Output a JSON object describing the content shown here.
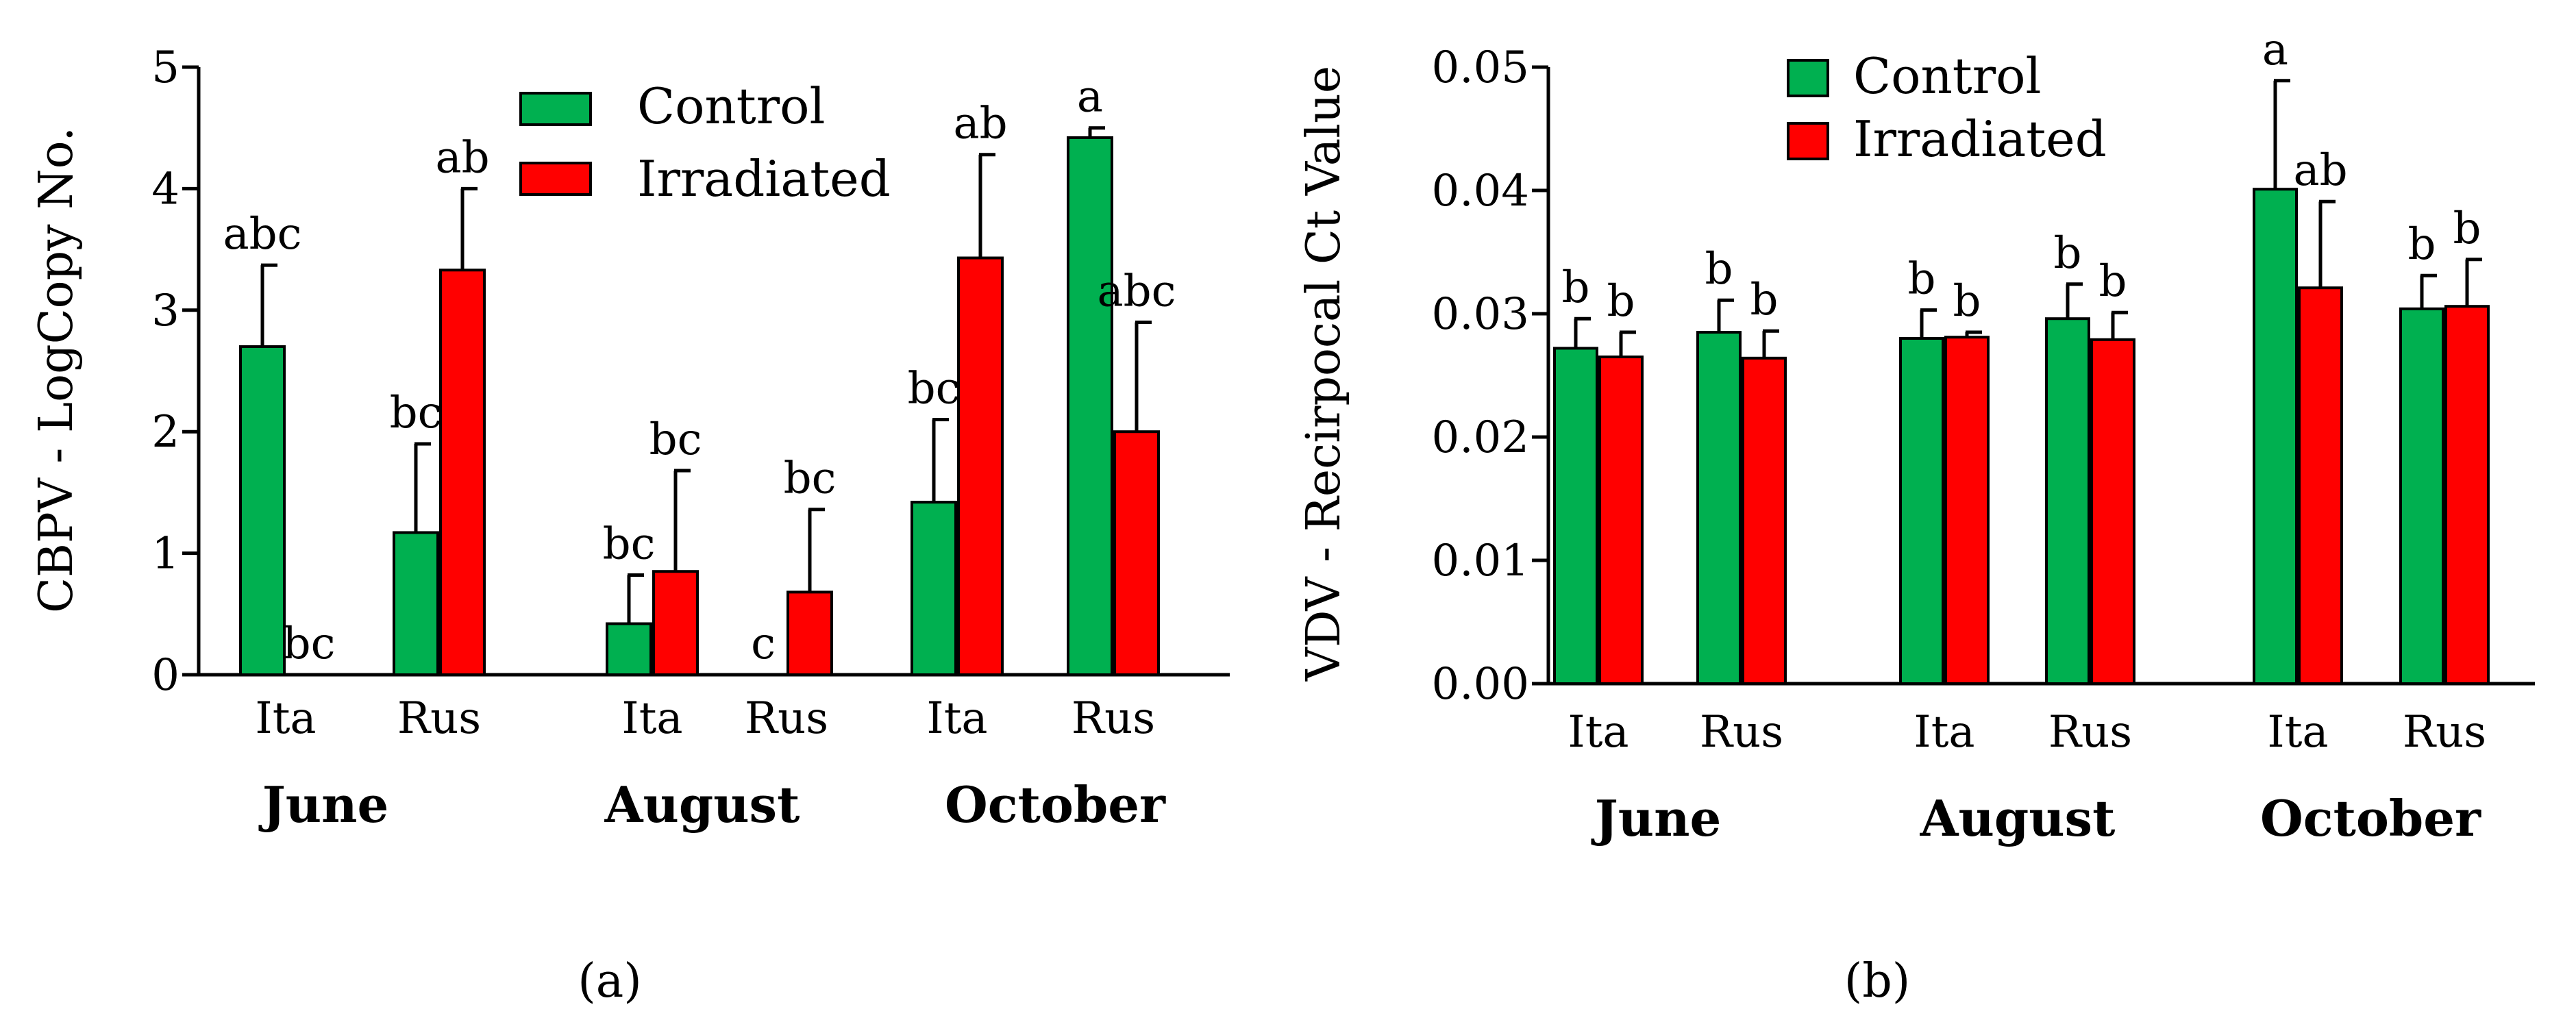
{
  "chart_data": [
    {
      "type": "bar",
      "panel_label": "(a)",
      "ylabel": "CBPV - LogCopy No.",
      "ylim": [
        0,
        5
      ],
      "yticks": [
        0,
        1,
        2,
        3,
        4,
        5
      ],
      "ytick_labels": [
        "0",
        "1",
        "2",
        "3",
        "4",
        "5"
      ],
      "months": [
        "June",
        "August",
        "October"
      ],
      "varieties": [
        "Ita",
        "Rus"
      ],
      "legend": {
        "position": "top-center",
        "entries": [
          "Control",
          "Irradiated"
        ]
      },
      "colors": {
        "Control": "#00b050",
        "Irradiated": "#ff0000"
      },
      "series": [
        {
          "name": "Control",
          "values": [
            2.7,
            1.17,
            0.42,
            0.0,
            1.42,
            4.42
          ],
          "errors": [
            0.67,
            0.73,
            0.4,
            0.0,
            0.68,
            0.08
          ],
          "letters": [
            "abc",
            "bc",
            "bc",
            "c",
            "bc",
            "a"
          ]
        },
        {
          "name": "Irradiated",
          "values": [
            0.0,
            3.33,
            0.85,
            0.68,
            3.43,
            2.0
          ],
          "errors": [
            0.0,
            0.67,
            0.83,
            0.68,
            0.85,
            0.9
          ],
          "letters": [
            "bc",
            "ab",
            "bc",
            "bc",
            "ab",
            "abc"
          ]
        }
      ]
    },
    {
      "type": "bar",
      "panel_label": "(b)",
      "ylabel": "VDV - Recirpocal Ct Value",
      "ylim": [
        0,
        0.05
      ],
      "yticks": [
        0,
        0.01,
        0.02,
        0.03,
        0.04,
        0.05
      ],
      "ytick_labels": [
        "0.00",
        "0.01",
        "0.02",
        "0.03",
        "0.04",
        "0.05"
      ],
      "months": [
        "June",
        "August",
        "October"
      ],
      "varieties": [
        "Ita",
        "Rus"
      ],
      "legend": {
        "position": "top-left",
        "entries": [
          "Control",
          "Irradiated"
        ]
      },
      "colors": {
        "Control": "#00b050",
        "Irradiated": "#ff0000"
      },
      "series": [
        {
          "name": "Control",
          "values": [
            0.0272,
            0.0285,
            0.028,
            0.0296,
            0.0401,
            0.0304
          ],
          "errors": [
            0.0024,
            0.0026,
            0.0023,
            0.0028,
            0.0088,
            0.0027
          ],
          "letters": [
            "b",
            "b",
            "b",
            "b",
            "a",
            "b"
          ]
        },
        {
          "name": "Irradiated",
          "values": [
            0.0265,
            0.0264,
            0.0281,
            0.0279,
            0.0321,
            0.0306
          ],
          "errors": [
            0.002,
            0.0022,
            0.0004,
            0.0022,
            0.007,
            0.0038
          ],
          "letters": [
            "b",
            "b",
            "b",
            "b",
            "ab",
            "b"
          ]
        }
      ]
    }
  ]
}
